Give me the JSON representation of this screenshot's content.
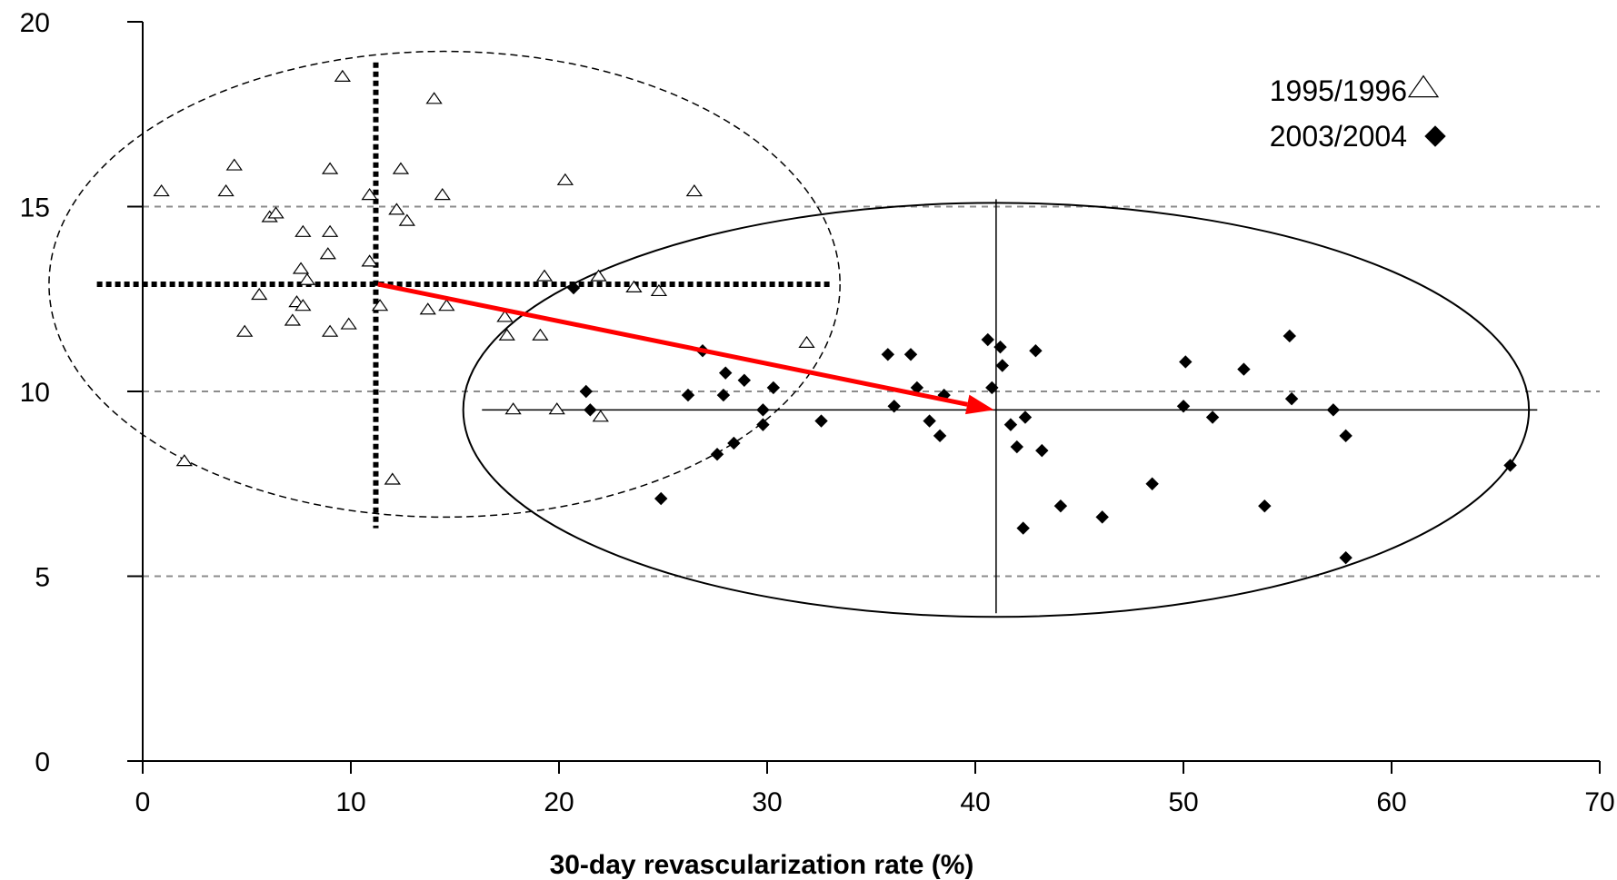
{
  "chart_data": {
    "type": "scatter",
    "title": "",
    "xlabel": "30-day revascularization rate (%)",
    "ylabel": "",
    "xlim": [
      0,
      70
    ],
    "ylim": [
      0,
      20
    ],
    "x_ticks": [
      "0",
      "10",
      "20",
      "30",
      "40",
      "50",
      "60",
      "70"
    ],
    "y_ticks": [
      "0",
      "5",
      "10",
      "15",
      "20"
    ],
    "horizontal_gridlines": [
      5,
      10,
      15
    ],
    "grid_style": "dashed gray, horizontal only",
    "legend_placement": "top-right",
    "series": [
      {
        "name": "1995/1996",
        "marker": "open-triangle",
        "color": "#000000",
        "points": [
          [
            0.9,
            15.4
          ],
          [
            2.0,
            8.1
          ],
          [
            4.0,
            15.4
          ],
          [
            4.4,
            16.1
          ],
          [
            4.9,
            11.6
          ],
          [
            5.6,
            12.6
          ],
          [
            6.1,
            14.7
          ],
          [
            6.4,
            14.8
          ],
          [
            7.2,
            11.9
          ],
          [
            7.4,
            12.4
          ],
          [
            7.6,
            13.3
          ],
          [
            7.7,
            14.3
          ],
          [
            7.7,
            12.3
          ],
          [
            7.9,
            13.0
          ],
          [
            8.9,
            13.7
          ],
          [
            9.0,
            14.3
          ],
          [
            9.0,
            16.0
          ],
          [
            9.0,
            11.6
          ],
          [
            9.6,
            18.5
          ],
          [
            9.9,
            11.8
          ],
          [
            10.9,
            13.5
          ],
          [
            10.9,
            15.3
          ],
          [
            11.4,
            12.3
          ],
          [
            12.0,
            7.6
          ],
          [
            12.2,
            14.9
          ],
          [
            12.4,
            16.0
          ],
          [
            12.7,
            14.6
          ],
          [
            13.7,
            12.2
          ],
          [
            14.0,
            17.9
          ],
          [
            14.4,
            15.3
          ],
          [
            14.6,
            12.3
          ],
          [
            17.4,
            12.0
          ],
          [
            17.5,
            11.5
          ],
          [
            17.8,
            9.5
          ],
          [
            19.1,
            11.5
          ],
          [
            19.3,
            13.1
          ],
          [
            19.9,
            9.5
          ],
          [
            20.3,
            15.7
          ],
          [
            21.9,
            13.1
          ],
          [
            22.0,
            9.3
          ],
          [
            23.6,
            12.8
          ],
          [
            24.8,
            12.7
          ],
          [
            26.5,
            15.4
          ],
          [
            31.9,
            11.3
          ]
        ]
      },
      {
        "name": "2003/2004",
        "marker": "filled-diamond",
        "color": "#000000",
        "points": [
          [
            20.7,
            12.8
          ],
          [
            21.3,
            10.0
          ],
          [
            21.5,
            9.5
          ],
          [
            24.9,
            7.1
          ],
          [
            26.2,
            9.9
          ],
          [
            26.9,
            11.1
          ],
          [
            27.6,
            8.3
          ],
          [
            27.9,
            9.9
          ],
          [
            28.0,
            10.5
          ],
          [
            28.4,
            8.6
          ],
          [
            28.9,
            10.3
          ],
          [
            29.8,
            9.1
          ],
          [
            29.8,
            9.5
          ],
          [
            30.3,
            10.1
          ],
          [
            32.6,
            9.2
          ],
          [
            35.8,
            11.0
          ],
          [
            36.1,
            9.6
          ],
          [
            36.9,
            11.0
          ],
          [
            37.2,
            10.1
          ],
          [
            37.8,
            9.2
          ],
          [
            38.3,
            8.8
          ],
          [
            38.5,
            9.9
          ],
          [
            40.6,
            11.4
          ],
          [
            40.8,
            10.1
          ],
          [
            41.2,
            11.2
          ],
          [
            41.3,
            10.7
          ],
          [
            41.7,
            9.1
          ],
          [
            42.0,
            8.5
          ],
          [
            42.3,
            6.3
          ],
          [
            42.4,
            9.3
          ],
          [
            42.9,
            11.1
          ],
          [
            43.2,
            8.4
          ],
          [
            44.1,
            6.9
          ],
          [
            46.1,
            6.6
          ],
          [
            48.5,
            7.5
          ],
          [
            50.0,
            9.6
          ],
          [
            50.1,
            10.8
          ],
          [
            51.4,
            9.3
          ],
          [
            52.9,
            10.6
          ],
          [
            53.9,
            6.9
          ],
          [
            55.1,
            11.5
          ],
          [
            55.2,
            9.8
          ],
          [
            57.2,
            9.5
          ],
          [
            57.8,
            5.5
          ],
          [
            57.8,
            8.8
          ],
          [
            65.7,
            8.0
          ]
        ]
      }
    ],
    "overlays": {
      "ellipse_1995": {
        "center": [
          14.5,
          12.9
        ],
        "x_radius": 19,
        "y_radius": 6.3,
        "style": "dashed"
      },
      "ellipse_2003": {
        "center": [
          41.0,
          9.5
        ],
        "x_radius": 25.6,
        "y_radius": 5.6,
        "style": "solid"
      },
      "crosshair_1995": {
        "x": 11.2,
        "y": 12.9,
        "x_range": [
          -2.2,
          33.1
        ],
        "y_range": [
          6.3,
          18.9
        ],
        "style": "thick dotted"
      },
      "crosshair_2003": {
        "x": 41.0,
        "y": 9.5,
        "x_range": [
          16.3,
          67.0
        ],
        "y_range": [
          4.0,
          15.2
        ],
        "style": "solid"
      },
      "arrow": {
        "from": [
          11.3,
          12.9
        ],
        "to": [
          40.9,
          9.5
        ],
        "color": "#ff0000"
      }
    }
  }
}
